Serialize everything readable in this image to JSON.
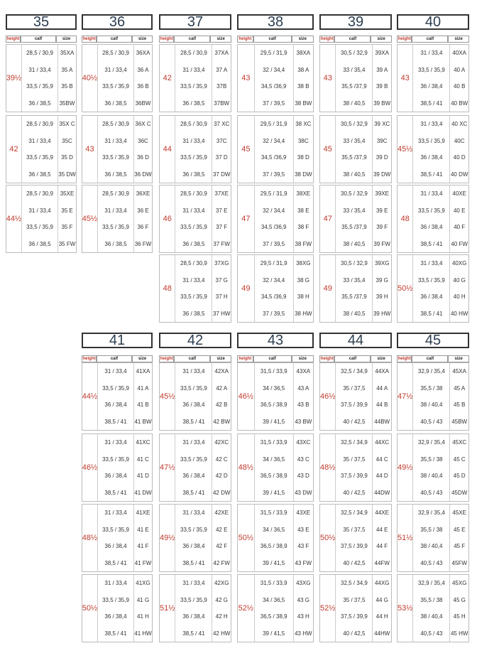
{
  "columns": [
    {
      "size": "35",
      "header": [
        "height",
        "calf",
        "size"
      ],
      "blocks": [
        {
          "height": "39½",
          "rows": [
            [
              "28,5 / 30,9",
              "35XA"
            ],
            [
              "31 / 33,4",
              "35 A"
            ],
            [
              "33,5 / 35,9",
              "35 B"
            ],
            [
              "36 / 38,5",
              "35BW"
            ]
          ]
        },
        {
          "height": "42",
          "rows": [
            [
              "28,5 / 30,9",
              "35X C"
            ],
            [
              "31 / 33,4",
              "35C"
            ],
            [
              "33,5 / 35,9",
              "35 D"
            ],
            [
              "36 / 38,5",
              "35 DW"
            ]
          ]
        },
        {
          "height": "44½",
          "rows": [
            [
              "28,5 / 30,9",
              "35XE"
            ],
            [
              "31 / 33,4",
              "35 E"
            ],
            [
              "33,5 / 35,9",
              "35 F"
            ],
            [
              "36 / 38,5",
              "35 FW"
            ]
          ]
        }
      ]
    },
    {
      "size": "36",
      "header": [
        "height",
        "calf",
        "size"
      ],
      "blocks": [
        {
          "height": "40½",
          "rows": [
            [
              "28,5 / 30,9",
              "36XA"
            ],
            [
              "31 / 33,4",
              "36 A"
            ],
            [
              "33,5 / 35,9",
              "36 B"
            ],
            [
              "36 / 38,5",
              "36BW"
            ]
          ]
        },
        {
          "height": "43",
          "rows": [
            [
              "28,5 / 30,9",
              "36X C"
            ],
            [
              "31 / 33,4",
              "36C"
            ],
            [
              "33,5 / 35,9",
              "36 D"
            ],
            [
              "36 / 38,5",
              "36 DW"
            ]
          ]
        },
        {
          "height": "45½",
          "rows": [
            [
              "28,5 / 30,9",
              "36XE"
            ],
            [
              "31 / 33,4",
              "36 E"
            ],
            [
              "33,5 / 35,9",
              "36 F"
            ],
            [
              "36 / 38,5",
              "36 FW"
            ]
          ]
        }
      ]
    },
    {
      "size": "37",
      "header": [
        "height",
        "calf",
        "size"
      ],
      "blocks": [
        {
          "height": "42",
          "rows": [
            [
              "28,5 / 30,9",
              "37XA"
            ],
            [
              "31 / 33,4",
              "37 A"
            ],
            [
              "33,5 / 35,9",
              "37B"
            ],
            [
              "36 / 38,5",
              "37BW"
            ]
          ]
        },
        {
          "height": "44",
          "rows": [
            [
              "28,5 / 30,9",
              "37 XC"
            ],
            [
              "31 / 33,4",
              "37C"
            ],
            [
              "33,5 / 35,9",
              "37 D"
            ],
            [
              "36 / 38,5",
              "37 DW"
            ]
          ]
        },
        {
          "height": "46",
          "rows": [
            [
              "28,5 / 30,9",
              "37XE"
            ],
            [
              "31 / 33,4",
              "37 E"
            ],
            [
              "33,5 / 35,9",
              "37 F"
            ],
            [
              "36 / 38,5",
              "37 FW"
            ]
          ]
        },
        {
          "height": "48",
          "rows": [
            [
              "28,5 / 30,9",
              "37XG"
            ],
            [
              "31 / 33,4",
              "37 G"
            ],
            [
              "33,5 / 35,9",
              "37 H"
            ],
            [
              "36 / 38,5",
              "37 HW"
            ]
          ]
        }
      ]
    },
    {
      "size": "38",
      "header": [
        "height",
        "calf",
        "size"
      ],
      "blocks": [
        {
          "height": "43",
          "rows": [
            [
              "29,5 / 31,9",
              "38XA"
            ],
            [
              "32 / 34,4",
              "38 A"
            ],
            [
              "34,5 /36,9",
              "38 B"
            ],
            [
              "37 / 39,5",
              "38 BW"
            ]
          ]
        },
        {
          "height": "45",
          "rows": [
            [
              "29,5 / 31,9",
              "38 XC"
            ],
            [
              "32 / 34,4",
              "38C"
            ],
            [
              "34,5 /36,9",
              "38 D"
            ],
            [
              "37 / 39,5",
              "38 DW"
            ]
          ]
        },
        {
          "height": "47",
          "rows": [
            [
              "29,5 / 31,9",
              "38XE"
            ],
            [
              "32 / 34,4",
              "38 E"
            ],
            [
              "34,5 /36,9",
              "38 F"
            ],
            [
              "37 / 39,5",
              "38 FW"
            ]
          ]
        },
        {
          "height": "49",
          "rows": [
            [
              "29,5 / 31,9",
              "38XG"
            ],
            [
              "32 / 34,4",
              "38 G"
            ],
            [
              "34,5 /36,9",
              "38 H"
            ],
            [
              "37 / 39,5",
              "38 HW"
            ]
          ]
        }
      ]
    },
    {
      "size": "39",
      "header": [
        "height",
        "calf",
        "size"
      ],
      "blocks": [
        {
          "height": "43",
          "rows": [
            [
              "30,5 / 32,9",
              "39XA"
            ],
            [
              "33 / 35,4",
              "39 A"
            ],
            [
              "35,5 /37,9",
              "39 B"
            ],
            [
              "38 / 40,5",
              "39 BW"
            ]
          ]
        },
        {
          "height": "45",
          "rows": [
            [
              "30,5 / 32,9",
              "39 XC"
            ],
            [
              "33 / 35,4",
              "39C"
            ],
            [
              "35,5 /37,9",
              "39 D"
            ],
            [
              "38 / 40,5",
              "39 DW"
            ]
          ]
        },
        {
          "height": "47",
          "rows": [
            [
              "30,5 / 32,9",
              "39XE"
            ],
            [
              "33 / 35,4",
              "39 E"
            ],
            [
              "35,5 /37,9",
              "39 F"
            ],
            [
              "38 / 40,5",
              "39 FW"
            ]
          ]
        },
        {
          "height": "49",
          "rows": [
            [
              "30,5 / 32,9",
              "39XG"
            ],
            [
              "33 / 35,4",
              "39 G"
            ],
            [
              "35,5 /37,9",
              "39 H"
            ],
            [
              "38 / 40,5",
              "39 HW"
            ]
          ]
        }
      ]
    },
    {
      "size": "40",
      "header": [
        "height",
        "calf",
        "size"
      ],
      "blocks": [
        {
          "height": "43",
          "rows": [
            [
              "31 / 33,4",
              "40XA"
            ],
            [
              "33,5 / 35,9",
              "40 A"
            ],
            [
              "36 / 38,4",
              "40 B"
            ],
            [
              "38,5 / 41",
              "40 BW"
            ]
          ]
        },
        {
          "height": "45½",
          "rows": [
            [
              "31 / 33,4",
              "40 XC"
            ],
            [
              "33,5 / 35,9",
              "40C"
            ],
            [
              "36 / 38,4",
              "40 D"
            ],
            [
              "38,5 / 41",
              "40 DW"
            ]
          ]
        },
        {
          "height": "48",
          "rows": [
            [
              "31 / 33,4",
              "40XE"
            ],
            [
              "33,5 / 35,9",
              "40 E"
            ],
            [
              "36 / 38,4",
              "40 F"
            ],
            [
              "38,5 / 41",
              "40 FW"
            ]
          ]
        },
        {
          "height": "50½",
          "rows": [
            [
              "31 / 33,4",
              "40XG"
            ],
            [
              "33,5 / 35,9",
              "40 G"
            ],
            [
              "36 / 38,4",
              "40 H"
            ],
            [
              "38,5 / 41",
              "40 HW"
            ]
          ]
        }
      ]
    },
    {
      "size": "41",
      "header": [
        "height",
        "calf",
        "size"
      ],
      "blocks": [
        {
          "height": "44½",
          "rows": [
            [
              "31 / 33,4",
              "41XA"
            ],
            [
              "33,5 / 35,9",
              "41 A"
            ],
            [
              "36 / 38,4",
              "41 B"
            ],
            [
              "38,5 / 41",
              "41 BW"
            ]
          ]
        },
        {
          "height": "46½",
          "rows": [
            [
              "31 / 33,4",
              "41XC"
            ],
            [
              "33,5 / 35,9",
              "41 C"
            ],
            [
              "36 / 38,4",
              "41 D"
            ],
            [
              "38,5 / 41",
              "41 DW"
            ]
          ]
        },
        {
          "height": "48½",
          "rows": [
            [
              "31 / 33,4",
              "41XE"
            ],
            [
              "33,5 / 35,9",
              "41 E"
            ],
            [
              "36 / 38,4",
              "41 F"
            ],
            [
              "38,5 / 41",
              "41 FW"
            ]
          ]
        },
        {
          "height": "50½",
          "rows": [
            [
              "31 / 33,4",
              "41XG"
            ],
            [
              "33,5 / 35,9",
              "41 G"
            ],
            [
              "36 / 38,4",
              "41 H"
            ],
            [
              "38,5 / 41",
              "41 HW"
            ]
          ]
        }
      ]
    },
    {
      "size": "42",
      "header": [
        "height",
        "calf",
        "size"
      ],
      "blocks": [
        {
          "height": "45½",
          "rows": [
            [
              "31 / 33,4",
              "42XA"
            ],
            [
              "33,5 / 35,9",
              "42 A"
            ],
            [
              "36 / 38,4",
              "42 B"
            ],
            [
              "38,5 / 41",
              "42 BW"
            ]
          ]
        },
        {
          "height": "47½",
          "rows": [
            [
              "31 / 33,4",
              "42XC"
            ],
            [
              "33,5 / 35,9",
              "42 C"
            ],
            [
              "36 / 38,4",
              "42 D"
            ],
            [
              "38,5 / 41",
              "42 DW"
            ]
          ]
        },
        {
          "height": "49½",
          "rows": [
            [
              "31 / 33,4",
              "42XE"
            ],
            [
              "33,5 / 35,9",
              "42 E"
            ],
            [
              "36 / 38,4",
              "42 F"
            ],
            [
              "38,5 / 41",
              "42 FW"
            ]
          ]
        },
        {
          "height": "51½",
          "rows": [
            [
              "31 / 33,4",
              "42XG"
            ],
            [
              "33,5 / 35,9",
              "42 G"
            ],
            [
              "36 / 38,4",
              "42 H"
            ],
            [
              "38,5 / 41",
              "42 HW"
            ]
          ]
        }
      ]
    },
    {
      "size": "43",
      "header": [
        "height",
        "calf",
        "size"
      ],
      "blocks": [
        {
          "height": "46½",
          "rows": [
            [
              "31,5 / 33,9",
              "43XA"
            ],
            [
              "34 / 36,5",
              "43 A"
            ],
            [
              "36,5 / 38,9",
              "43 B"
            ],
            [
              "39 / 41,5",
              "43 BW"
            ]
          ]
        },
        {
          "height": "48½",
          "rows": [
            [
              "31,5 / 33,9",
              "43XC"
            ],
            [
              "34 / 36,5",
              "43 C"
            ],
            [
              "36,5 / 38,9",
              "43 D"
            ],
            [
              "39 / 41,5",
              "43 DW"
            ]
          ]
        },
        {
          "height": "50½",
          "rows": [
            [
              "31,5 / 33,9",
              "43XE"
            ],
            [
              "34 / 36,5",
              "43 E"
            ],
            [
              "36,5 / 38,9",
              "43 F"
            ],
            [
              "39 / 41,5",
              "43 FW"
            ]
          ]
        },
        {
          "height": "52½",
          "rows": [
            [
              "31,5 / 33,9",
              "43XG"
            ],
            [
              "34 / 36,5",
              "43 G"
            ],
            [
              "36,5 / 38,9",
              "43 H"
            ],
            [
              "39 / 41,5",
              "43 HW"
            ]
          ]
        }
      ]
    },
    {
      "size": "44",
      "header": [
        "height",
        "calf",
        "size"
      ],
      "blocks": [
        {
          "height": "46½",
          "rows": [
            [
              "32,5 / 34,9",
              "44XA"
            ],
            [
              "35 / 37,5",
              "44 A"
            ],
            [
              "37,5 / 39,9",
              "44 B"
            ],
            [
              "40 / 42,5",
              "44BW"
            ]
          ]
        },
        {
          "height": "48½",
          "rows": [
            [
              "32,5 / 34,9",
              "44XC"
            ],
            [
              "35 / 37,5",
              "44 C"
            ],
            [
              "37,5 / 39,9",
              "44 D"
            ],
            [
              "40 / 42,5",
              "44DW"
            ]
          ]
        },
        {
          "height": "50½",
          "rows": [
            [
              "32,5 / 34,9",
              "44XE"
            ],
            [
              "35 / 37,5",
              "44 E"
            ],
            [
              "37,5 / 39,9",
              "44 F"
            ],
            [
              "40 / 42,5",
              "44FW"
            ]
          ]
        },
        {
          "height": "52½",
          "rows": [
            [
              "32,5 / 34,9",
              "44XG"
            ],
            [
              "35 / 37,5",
              "44 G"
            ],
            [
              "37,5 / 39,9",
              "44 H"
            ],
            [
              "40 / 42,5",
              "44HW"
            ]
          ]
        }
      ]
    },
    {
      "size": "45",
      "header": [
        "height",
        "calf",
        "size"
      ],
      "blocks": [
        {
          "height": "47½",
          "rows": [
            [
              "32,9 / 35,4",
              "45XA"
            ],
            [
              "35,5 / 38",
              "45 A"
            ],
            [
              "38 / 40,4",
              "45 B"
            ],
            [
              "40,5 / 43",
              "45BW"
            ]
          ]
        },
        {
          "height": "49½",
          "rows": [
            [
              "32,9 / 35,4",
              "45XC"
            ],
            [
              "35,5 / 38",
              "45 C"
            ],
            [
              "38 / 40,4",
              "45 D"
            ],
            [
              "40,5 / 43",
              "45DW"
            ]
          ]
        },
        {
          "height": "51½",
          "rows": [
            [
              "32,9 / 35,4",
              "45XE"
            ],
            [
              "35,5 / 38",
              "45 E"
            ],
            [
              "38 / 40,4",
              "45 F"
            ],
            [
              "40,5 / 43",
              "45FW"
            ]
          ]
        },
        {
          "height": "53½",
          "rows": [
            [
              "32,9 / 35,4",
              "45XG"
            ],
            [
              "35,5 / 38",
              "45 G"
            ],
            [
              "38 / 40,4",
              "45 H"
            ],
            [
              "40,5 / 43",
              "45 HW"
            ]
          ]
        }
      ]
    }
  ]
}
